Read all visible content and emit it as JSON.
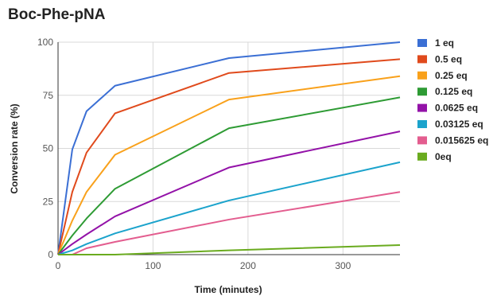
{
  "chart_data": {
    "type": "line",
    "title": "Boc-Phe-pNA",
    "xlabel": "Time (minutes)",
    "ylabel": "Conversion rate (%)",
    "xlim": [
      0,
      360
    ],
    "ylim": [
      0,
      100
    ],
    "x_ticks": [
      0,
      100,
      200,
      300
    ],
    "y_ticks": [
      0,
      25,
      50,
      75,
      100
    ],
    "grid": true,
    "legend_position": "right",
    "x": [
      0,
      15,
      30,
      60,
      180,
      360
    ],
    "series": [
      {
        "name": "1 eq",
        "color": "#3b6fd4",
        "values": [
          0,
          49.5,
          67.5,
          79.5,
          92.5,
          100
        ]
      },
      {
        "name": "0.5 eq",
        "color": "#e04a1c",
        "values": [
          0,
          29.5,
          48,
          66.5,
          85.5,
          92
        ]
      },
      {
        "name": "0.25 eq",
        "color": "#f9a11b",
        "values": [
          0,
          16,
          29.5,
          47,
          73,
          84
        ]
      },
      {
        "name": "0.125 eq",
        "color": "#2e9b34",
        "values": [
          0,
          9,
          17,
          31,
          59.5,
          74
        ]
      },
      {
        "name": "0.0625 eq",
        "color": "#9312a8",
        "values": [
          0,
          5,
          9.5,
          18,
          41,
          58
        ]
      },
      {
        "name": "0.03125 eq",
        "color": "#1ba3cc",
        "values": [
          0,
          2,
          5,
          10,
          25.5,
          43.5
        ]
      },
      {
        "name": "0.015625 eq",
        "color": "#e35d8f",
        "values": [
          0,
          0,
          3,
          6,
          16.5,
          29.5
        ]
      },
      {
        "name": "0eq",
        "color": "#6aab1f",
        "values": [
          0,
          0,
          0,
          0,
          2,
          4.5
        ]
      }
    ]
  }
}
